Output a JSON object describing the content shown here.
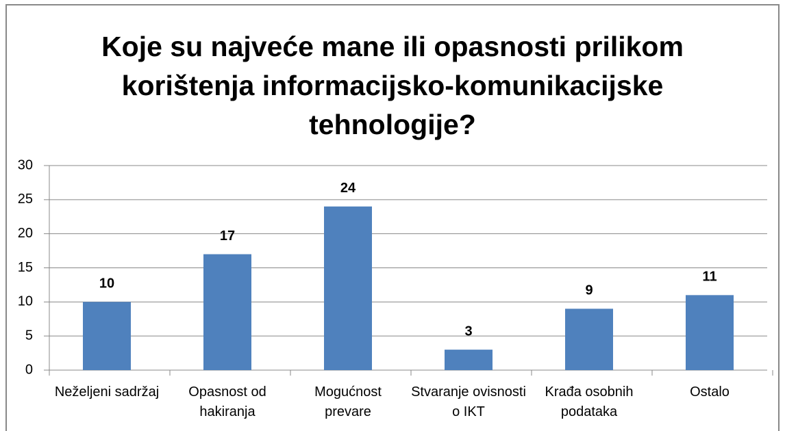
{
  "chart_data": {
    "type": "bar",
    "title": "Koje su najveće mane ili opasnosti prilikom korištenja informacijsko-komunikacijske tehnologije?",
    "categories": [
      "Neželjeni sadržaj",
      "Opasnost od hakiranja",
      "Mogućnost prevare",
      "Stvaranje ovisnosti o IKT",
      "Krađa osobnih podataka",
      "Ostalo"
    ],
    "values": [
      10,
      17,
      24,
      3,
      9,
      11
    ],
    "color": "#4f81bd",
    "ylim": [
      0,
      30
    ],
    "yticks": [
      0,
      5,
      10,
      15,
      20,
      25,
      30
    ],
    "grid": true
  }
}
